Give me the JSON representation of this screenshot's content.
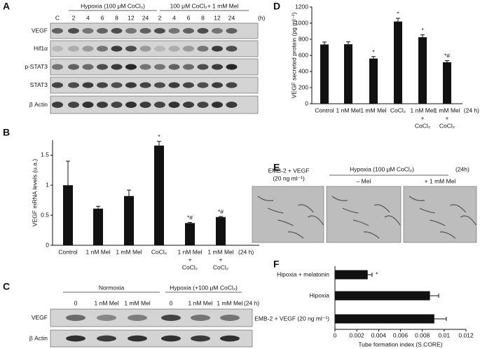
{
  "blot_a": {
    "label": "A",
    "groups": [
      "Hypoxia (100 μM CoCl₂)",
      "100 μM CoCl₂+ 1 mM Mel"
    ],
    "lanes": [
      "C",
      "2",
      "4",
      "6",
      "8",
      "12",
      "24",
      "2",
      "4",
      "6",
      "8",
      "12",
      "24"
    ],
    "unit": "(h)",
    "rows": [
      "VEGF",
      "Hif1α",
      "p-STAT3",
      "STAT3",
      "β Actin"
    ]
  },
  "blot_c": {
    "label": "C",
    "groups": [
      "Normoxia",
      "Hypoxia (+100 μM CoCl₂)"
    ],
    "lanes": [
      "0",
      "1 nM Mel",
      "1 mM Mel",
      "0",
      "1 nM Mel",
      "1 mM Mel"
    ],
    "unit": "(24 h)",
    "rows": [
      "VEGF",
      "β Actin"
    ]
  },
  "panel_e": {
    "label": "E",
    "control": [
      "EMB-2 + VEGF",
      "(20 ng ml⁻¹)"
    ],
    "group": "Hypoxia (100 μM CoCl₂)",
    "unit": "(24h)",
    "images": [
      "– Mel",
      "+ 1 mM Mel"
    ]
  },
  "chart_data": [
    {
      "type": "bar",
      "label": "B",
      "ylabel": "VEGF mRNA levels (u.a.)",
      "unit": "(24 h)",
      "categories": [
        "Control",
        "1 nM Mel",
        "1 mM Mel",
        "CoCl₂",
        [
          "1 nM Mel",
          "+",
          "CoCl₂"
        ],
        [
          "1 mM Mel",
          "+",
          "CoCl₂"
        ]
      ],
      "values": [
        1.0,
        0.61,
        0.82,
        1.66,
        0.37,
        0.47
      ],
      "errors": [
        0.4,
        0.04,
        0.1,
        0.07,
        0.01,
        0.01
      ],
      "annotations": [
        null,
        null,
        null,
        "*",
        "*#",
        "*#"
      ],
      "color": "#111111",
      "ylim": [
        0,
        1.75
      ],
      "yticks": [
        0,
        0.5,
        1,
        1.5
      ]
    },
    {
      "type": "bar",
      "label": "D",
      "ylabel": "VEGF secreted protein (pg ml⁻¹)",
      "unit": "(24 h)",
      "categories": [
        "Control",
        "1 nM Mel",
        "1 mM Mel",
        "CoCl₂",
        [
          "1 nM Mel",
          "+",
          "CoCl₂"
        ],
        [
          "1 mM Mel",
          "+",
          "CoCl₂"
        ]
      ],
      "values": [
        735,
        738,
        560,
        1020,
        825,
        515
      ],
      "errors": [
        30,
        30,
        25,
        40,
        30,
        20
      ],
      "annotations": [
        null,
        null,
        "*",
        "*",
        "*",
        "*#"
      ],
      "color": "#111111",
      "ylim": [
        0,
        1200
      ],
      "yticks": [
        0,
        200,
        400,
        600,
        800,
        1000,
        1200
      ]
    },
    {
      "type": "hbar",
      "label": "F",
      "xlabel": "Tube formation index (S.CORE)",
      "categories": [
        "Hipoxia + melatonin",
        "Hipoxia",
        "EMB-2 + VEGF (20 ng ml⁻¹)"
      ],
      "values": [
        0.003,
        0.0087,
        0.0091
      ],
      "errors": [
        0.0004,
        0.0008,
        0.0011
      ],
      "annotations": [
        "*",
        null,
        null
      ],
      "color": "#111111",
      "xlim": [
        0,
        0.012
      ],
      "xticks": [
        0,
        0.002,
        0.004,
        0.006,
        0.008,
        0.01,
        0.012
      ]
    }
  ]
}
